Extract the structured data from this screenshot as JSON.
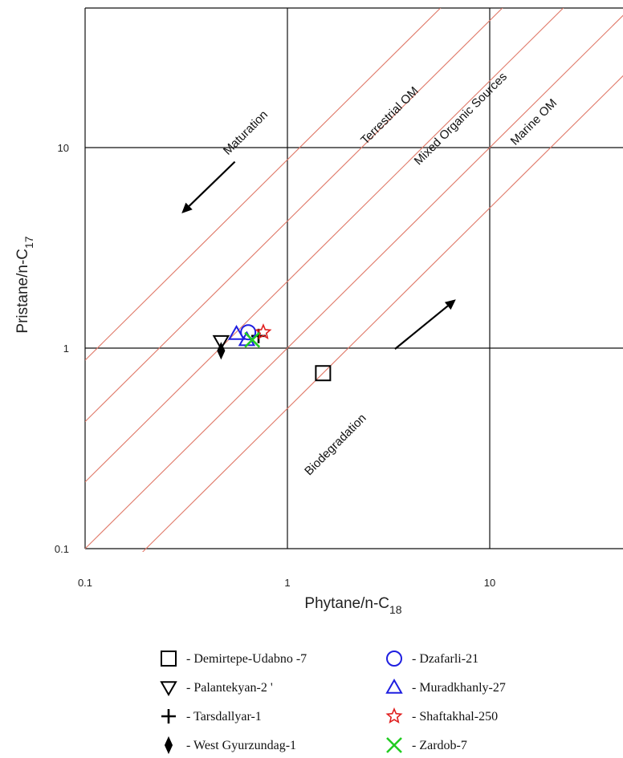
{
  "chart_data": {
    "type": "scatter",
    "title": "",
    "xlabel": "Phytane/n-C",
    "xlabel_sub": "18",
    "ylabel": "Pristane/n-C",
    "ylabel_sub": "17",
    "xscale": "log",
    "yscale": "log",
    "xlim": [
      0.1,
      50
    ],
    "ylim": [
      0.1,
      50
    ],
    "x_ticks": [
      0.1,
      1,
      10
    ],
    "x_tick_labels": [
      "0.1",
      "1",
      "10"
    ],
    "y_ticks": [
      0.1,
      1,
      10
    ],
    "y_tick_labels": [
      "0.1",
      "1",
      "10"
    ],
    "grid": true,
    "legend_position": "bottom",
    "reference_lines": [
      {
        "ratio": 8.7
      },
      {
        "ratio": 4.3
      },
      {
        "ratio": 2.15
      },
      {
        "ratio": 1.0
      },
      {
        "ratio": 0.5
      }
    ],
    "annotations": [
      {
        "text": "Terrestrial OM",
        "x": 3.3,
        "y": 14,
        "angle": -45
      },
      {
        "text": "Mixed Organic Sources",
        "x": 7.4,
        "y": 13.5,
        "angle": -45
      },
      {
        "text": "Marine OM",
        "x": 17,
        "y": 13,
        "angle": -45
      },
      {
        "text": "Maturation",
        "x": 0.64,
        "y": 11.5,
        "angle": -45
      },
      {
        "text": "Biodegradation",
        "x": 1.78,
        "y": 0.32,
        "angle": -45
      }
    ],
    "arrows": [
      {
        "name": "Maturation",
        "from": [
          0.55,
          8.5
        ],
        "to": [
          0.3,
          4.7
        ]
      },
      {
        "name": "Biodegradation",
        "from": [
          3.4,
          0.99
        ],
        "to": [
          6.8,
          1.75
        ]
      }
    ],
    "series": [
      {
        "name": "Demirtepe-Udabno -7",
        "marker": "square",
        "color": "#000000",
        "points": [
          [
            1.5,
            0.75
          ]
        ]
      },
      {
        "name": "Palantekyan-2",
        "marker": "triangle-down",
        "color": "#000000",
        "points": [
          [
            0.47,
            1.08
          ]
        ]
      },
      {
        "name": "Tarsdallyar-1",
        "marker": "plus",
        "color": "#000000",
        "points": [
          [
            0.72,
            1.15
          ]
        ]
      },
      {
        "name": "West Gyurzundag-1",
        "marker": "diamond",
        "color": "#000000",
        "points": [
          [
            0.47,
            0.97
          ]
        ]
      },
      {
        "name": "Dzafarli-21",
        "marker": "circle",
        "color": "#1f1fe0",
        "points": [
          [
            0.64,
            1.2
          ]
        ]
      },
      {
        "name": "Muradkhanly-27",
        "marker": "triangle-up",
        "color": "#1f1fe0",
        "points": [
          [
            0.56,
            1.18
          ],
          [
            0.63,
            1.1
          ]
        ]
      },
      {
        "name": "Shaftakhal-250",
        "marker": "star",
        "color": "#e02020",
        "points": [
          [
            0.76,
            1.2
          ]
        ]
      },
      {
        "name": "Zardob-7",
        "marker": "x",
        "color": "#22cc22",
        "points": [
          [
            0.67,
            1.1
          ]
        ]
      }
    ],
    "legend": [
      {
        "label": "- Demirtepe-Udabno -7",
        "marker": "square",
        "color": "#000000"
      },
      {
        "label": "- Dzafarli-21",
        "marker": "circle",
        "color": "#1f1fe0"
      },
      {
        "label": "- Palantekyan-2 '",
        "marker": "triangle-down",
        "color": "#000000"
      },
      {
        "label": "- Muradkhanly-27",
        "marker": "triangle-up",
        "color": "#1f1fe0"
      },
      {
        "label": "- Tarsdallyar-1",
        "marker": "plus",
        "color": "#000000"
      },
      {
        "label": "- Shaftakhal-250",
        "marker": "star",
        "color": "#e02020"
      },
      {
        "label": "- West Gyurzundag-1",
        "marker": "diamond",
        "color": "#000000"
      },
      {
        "label": "- Zardob-7",
        "marker": "x",
        "color": "#22cc22"
      }
    ],
    "colors": {
      "grid": "#111111",
      "reference_line": "#e07a6a"
    }
  }
}
